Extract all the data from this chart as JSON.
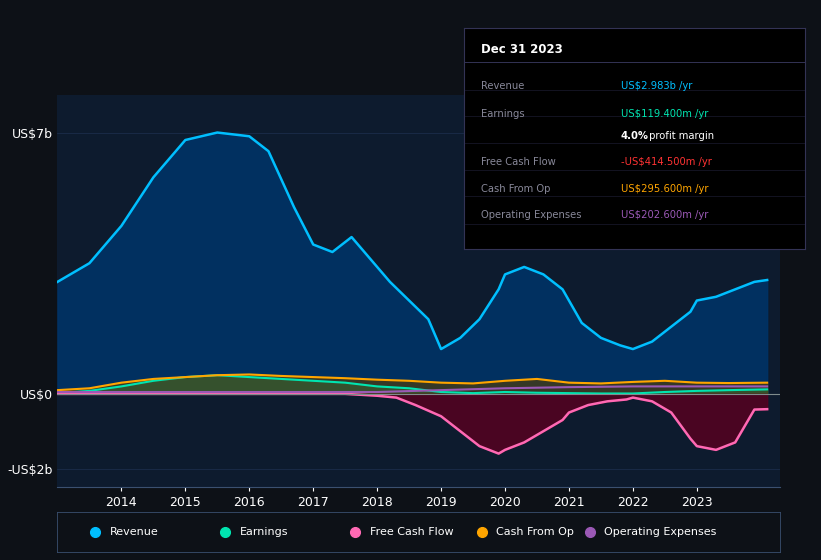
{
  "bg_color": "#0d1117",
  "plot_bg_color": "#0d1b2e",
  "grid_color": "#1e3050",
  "ylim": [
    -2500000000.0,
    8000000000.0
  ],
  "revenue": {
    "x": [
      2013.0,
      2013.5,
      2014.0,
      2014.5,
      2015.0,
      2015.5,
      2016.0,
      2016.3,
      2016.7,
      2017.0,
      2017.3,
      2017.6,
      2017.9,
      2018.2,
      2018.5,
      2018.8,
      2019.0,
      2019.3,
      2019.6,
      2019.9,
      2020.0,
      2020.3,
      2020.6,
      2020.9,
      2021.2,
      2021.5,
      2021.8,
      2022.0,
      2022.3,
      2022.6,
      2022.9,
      2023.0,
      2023.3,
      2023.6,
      2023.9,
      2024.1
    ],
    "y": [
      3000000000.0,
      3500000000.0,
      4500000000.0,
      5800000000.0,
      6800000000.0,
      7000000000.0,
      6900000000.0,
      6500000000.0,
      5000000000.0,
      4000000000.0,
      3800000000.0,
      4200000000.0,
      3600000000.0,
      3000000000.0,
      2500000000.0,
      2000000000.0,
      1200000000.0,
      1500000000.0,
      2000000000.0,
      2800000000.0,
      3200000000.0,
      3400000000.0,
      3200000000.0,
      2800000000.0,
      1900000000.0,
      1500000000.0,
      1300000000.0,
      1200000000.0,
      1400000000.0,
      1800000000.0,
      2200000000.0,
      2500000000.0,
      2600000000.0,
      2800000000.0,
      3000000000.0,
      3050000000.0
    ],
    "color": "#00bfff",
    "fill_color": "#003366"
  },
  "earnings": {
    "x": [
      2013.0,
      2013.5,
      2014.0,
      2014.5,
      2015.0,
      2015.5,
      2016.0,
      2016.5,
      2017.0,
      2017.5,
      2018.0,
      2018.5,
      2019.0,
      2019.5,
      2020.0,
      2020.5,
      2021.0,
      2021.5,
      2022.0,
      2022.5,
      2023.0,
      2023.5,
      2024.1
    ],
    "y": [
      20000000.0,
      80000000.0,
      200000000.0,
      350000000.0,
      450000000.0,
      500000000.0,
      450000000.0,
      400000000.0,
      350000000.0,
      300000000.0,
      200000000.0,
      150000000.0,
      50000000.0,
      20000000.0,
      50000000.0,
      30000000.0,
      20000000.0,
      10000000.0,
      10000000.0,
      50000000.0,
      80000000.0,
      100000000.0,
      120000000.0
    ],
    "color": "#00e5b0",
    "fill_color": "#00897b"
  },
  "cashfromop": {
    "x": [
      2013.0,
      2013.5,
      2014.0,
      2014.5,
      2015.0,
      2015.5,
      2016.0,
      2016.5,
      2017.0,
      2017.5,
      2018.0,
      2018.5,
      2019.0,
      2019.5,
      2020.0,
      2020.5,
      2021.0,
      2021.5,
      2022.0,
      2022.5,
      2023.0,
      2023.5,
      2024.1
    ],
    "y": [
      100000000.0,
      150000000.0,
      300000000.0,
      400000000.0,
      450000000.0,
      500000000.0,
      520000000.0,
      480000000.0,
      450000000.0,
      420000000.0,
      380000000.0,
      350000000.0,
      300000000.0,
      280000000.0,
      350000000.0,
      400000000.0,
      300000000.0,
      280000000.0,
      320000000.0,
      350000000.0,
      300000000.0,
      290000000.0,
      300000000.0
    ],
    "color": "#ffa500",
    "fill_color": "#5a3e00"
  },
  "freecashflow": {
    "x": [
      2013.0,
      2013.5,
      2014.0,
      2014.5,
      2015.0,
      2015.5,
      2016.0,
      2016.5,
      2017.0,
      2017.5,
      2018.0,
      2018.3,
      2018.6,
      2019.0,
      2019.3,
      2019.6,
      2019.9,
      2020.0,
      2020.3,
      2020.6,
      2020.9,
      2021.0,
      2021.3,
      2021.6,
      2021.9,
      2022.0,
      2022.3,
      2022.6,
      2022.9,
      2023.0,
      2023.3,
      2023.6,
      2023.9,
      2024.1
    ],
    "y": [
      0.0,
      0.0,
      0.0,
      0.0,
      0.0,
      0.0,
      0.0,
      0.0,
      0.0,
      0.0,
      -50000000.0,
      -100000000.0,
      -300000000.0,
      -600000000.0,
      -1000000000.0,
      -1400000000.0,
      -1600000000.0,
      -1500000000.0,
      -1300000000.0,
      -1000000000.0,
      -700000000.0,
      -500000000.0,
      -300000000.0,
      -200000000.0,
      -150000000.0,
      -100000000.0,
      -200000000.0,
      -500000000.0,
      -1200000000.0,
      -1400000000.0,
      -1500000000.0,
      -1300000000.0,
      -420000000.0,
      -410000000.0
    ],
    "color": "#ff69b4",
    "fill_color": "#5a0020"
  },
  "opex": {
    "x": [
      2013.0,
      2014.0,
      2015.0,
      2016.0,
      2017.0,
      2018.0,
      2019.0,
      2020.0,
      2021.0,
      2022.0,
      2023.0,
      2024.1
    ],
    "y": [
      50000000.0,
      50000000.0,
      50000000.0,
      50000000.0,
      50000000.0,
      50000000.0,
      100000000.0,
      150000000.0,
      180000000.0,
      200000000.0,
      200000000.0,
      200000000.0
    ],
    "color": "#9b59b6"
  },
  "info_title": "Dec 31 2023",
  "info_rows": [
    {
      "label": "Revenue",
      "value": "US$2.983b /yr",
      "vcolor": "#00bfff",
      "extra": ""
    },
    {
      "label": "Earnings",
      "value": "US$119.400m /yr",
      "vcolor": "#00e5b0",
      "extra": ""
    },
    {
      "label": "",
      "value": "4.0%",
      "vcolor": "#ffffff",
      "extra": " profit margin"
    },
    {
      "label": "Free Cash Flow",
      "value": "-US$414.500m /yr",
      "vcolor": "#ff3333",
      "extra": ""
    },
    {
      "label": "Cash From Op",
      "value": "US$295.600m /yr",
      "vcolor": "#ffa500",
      "extra": ""
    },
    {
      "label": "Operating Expenses",
      "value": "US$202.600m /yr",
      "vcolor": "#9b59b6",
      "extra": ""
    }
  ],
  "legend_items": [
    {
      "label": "Revenue",
      "color": "#00bfff"
    },
    {
      "label": "Earnings",
      "color": "#00e5b0"
    },
    {
      "label": "Free Cash Flow",
      "color": "#ff69b4"
    },
    {
      "label": "Cash From Op",
      "color": "#ffa500"
    },
    {
      "label": "Operating Expenses",
      "color": "#9b59b6"
    }
  ]
}
